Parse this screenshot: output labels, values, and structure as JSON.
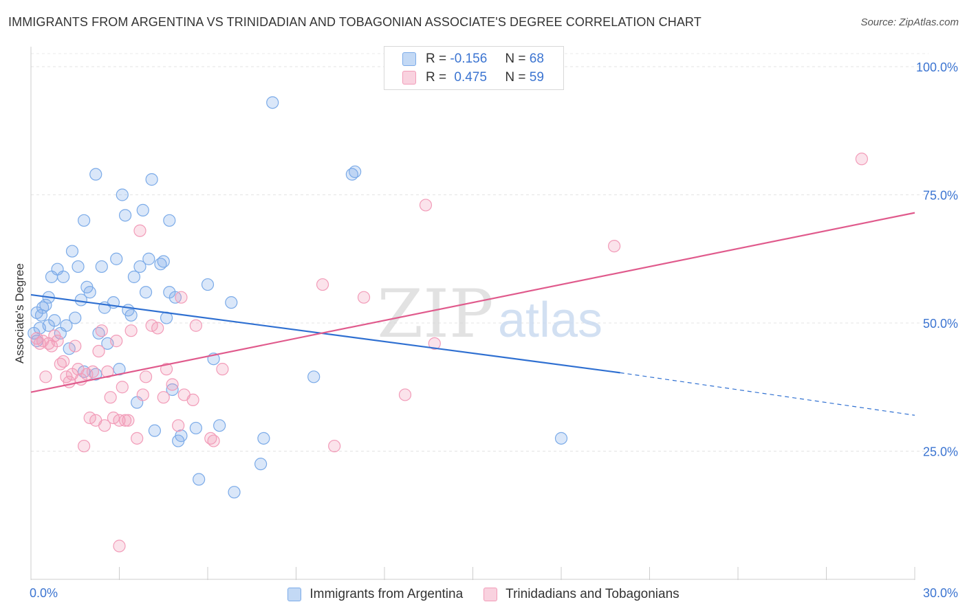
{
  "title": "IMMIGRANTS FROM ARGENTINA VS TRINIDADIAN AND TOBAGONIAN ASSOCIATE'S DEGREE CORRELATION CHART",
  "source": "Source: ZipAtlas.com",
  "watermark": {
    "zip": "ZIP",
    "atlas": "atlas"
  },
  "legend_top": [
    {
      "r_label": "R =",
      "r_value": "-0.156",
      "n_label": "N =",
      "n_value": "68"
    },
    {
      "r_label": "R =",
      "r_value": "0.475",
      "n_label": "N =",
      "n_value": "59"
    }
  ],
  "chart_data": {
    "type": "scatter",
    "ylabel": "Associate's Degree",
    "xlabel": "",
    "xlim": [
      0,
      30
    ],
    "ylim": [
      0,
      102
    ],
    "x_tick_labels": [
      {
        "value": 0,
        "label": "0.0%"
      },
      {
        "value": 30,
        "label": "30.0%"
      }
    ],
    "y_tick_labels": [
      {
        "value": 25,
        "label": "25.0%"
      },
      {
        "value": 50,
        "label": "50.0%"
      },
      {
        "value": 75,
        "label": "75.0%"
      },
      {
        "value": 100,
        "label": "100.0%"
      }
    ],
    "grid": true,
    "legend_position": "bottom",
    "series": [
      {
        "name": "Immigrants from Argentina",
        "color": "#7aaae8",
        "line_color": "#2e6fd1",
        "trend": {
          "x0": 0,
          "y0": 55.5,
          "x1": 20,
          "y1": 40.3,
          "dash_x1": 30,
          "dash_y1": 32.0
        },
        "points": [
          [
            0.1,
            48
          ],
          [
            0.2,
            52
          ],
          [
            0.3,
            49
          ],
          [
            0.35,
            51.5
          ],
          [
            0.4,
            53
          ],
          [
            0.5,
            53.5
          ],
          [
            0.6,
            49.5
          ],
          [
            0.7,
            59
          ],
          [
            0.8,
            50.5
          ],
          [
            0.9,
            60.5
          ],
          [
            1.0,
            48
          ],
          [
            1.1,
            59
          ],
          [
            1.2,
            49.5
          ],
          [
            1.3,
            45
          ],
          [
            1.4,
            64
          ],
          [
            1.5,
            51
          ],
          [
            1.6,
            61
          ],
          [
            1.7,
            54.5
          ],
          [
            1.8,
            70
          ],
          [
            1.9,
            57
          ],
          [
            2.0,
            56
          ],
          [
            2.2,
            79
          ],
          [
            2.3,
            48
          ],
          [
            2.4,
            61
          ],
          [
            2.5,
            53
          ],
          [
            2.6,
            46
          ],
          [
            2.8,
            54
          ],
          [
            2.9,
            62.5
          ],
          [
            3.0,
            41
          ],
          [
            3.1,
            75
          ],
          [
            3.2,
            71
          ],
          [
            3.4,
            51.5
          ],
          [
            3.5,
            59
          ],
          [
            3.6,
            34.5
          ],
          [
            3.7,
            61
          ],
          [
            3.8,
            72
          ],
          [
            3.9,
            56
          ],
          [
            4.0,
            62.5
          ],
          [
            4.1,
            78
          ],
          [
            4.2,
            29
          ],
          [
            4.4,
            61.5
          ],
          [
            4.5,
            62
          ],
          [
            4.6,
            51
          ],
          [
            4.7,
            70
          ],
          [
            4.8,
            37
          ],
          [
            4.9,
            55
          ],
          [
            5.0,
            27
          ],
          [
            5.1,
            28
          ],
          [
            5.6,
            29.5
          ],
          [
            5.7,
            19.5
          ],
          [
            6.0,
            57.5
          ],
          [
            6.2,
            43
          ],
          [
            6.4,
            30
          ],
          [
            6.8,
            54
          ],
          [
            6.9,
            17
          ],
          [
            7.8,
            22.5
          ],
          [
            7.9,
            27.5
          ],
          [
            8.2,
            93
          ],
          [
            9.6,
            39.5
          ],
          [
            10.9,
            79
          ],
          [
            11.0,
            79.5
          ],
          [
            18.0,
            27.5
          ],
          [
            0.6,
            55
          ],
          [
            1.8,
            40.5
          ],
          [
            2.2,
            40
          ],
          [
            3.3,
            52.5
          ],
          [
            4.7,
            56
          ],
          [
            0.2,
            46.5
          ]
        ]
      },
      {
        "name": "Trinidadians and Tobagonians",
        "color": "#f29bb8",
        "line_color": "#e05a8c",
        "trend": {
          "x0": 0,
          "y0": 36.5,
          "x1": 30,
          "y1": 71.5
        },
        "points": [
          [
            0.2,
            47
          ],
          [
            0.3,
            46
          ],
          [
            0.4,
            46.5
          ],
          [
            0.5,
            39.5
          ],
          [
            0.6,
            46
          ],
          [
            0.7,
            45.5
          ],
          [
            0.8,
            47.5
          ],
          [
            0.9,
            46.5
          ],
          [
            1.0,
            42
          ],
          [
            1.1,
            42.5
          ],
          [
            1.2,
            39.5
          ],
          [
            1.3,
            38.5
          ],
          [
            1.4,
            40
          ],
          [
            1.5,
            45.5
          ],
          [
            1.6,
            41
          ],
          [
            1.7,
            39
          ],
          [
            1.8,
            26
          ],
          [
            1.9,
            40
          ],
          [
            2.0,
            31.5
          ],
          [
            2.1,
            40.5
          ],
          [
            2.2,
            31
          ],
          [
            2.3,
            44.5
          ],
          [
            2.4,
            48.5
          ],
          [
            2.5,
            30
          ],
          [
            2.6,
            40.5
          ],
          [
            2.7,
            35.5
          ],
          [
            2.8,
            31.5
          ],
          [
            2.9,
            46.5
          ],
          [
            3.0,
            31
          ],
          [
            3.1,
            37.5
          ],
          [
            3.2,
            31
          ],
          [
            3.3,
            31
          ],
          [
            3.4,
            48.5
          ],
          [
            3.6,
            27.5
          ],
          [
            3.7,
            68
          ],
          [
            3.8,
            36
          ],
          [
            3.9,
            39.5
          ],
          [
            4.1,
            49.5
          ],
          [
            4.3,
            49
          ],
          [
            4.5,
            35.5
          ],
          [
            4.6,
            41
          ],
          [
            4.8,
            38
          ],
          [
            5.0,
            30
          ],
          [
            5.1,
            55
          ],
          [
            5.2,
            36
          ],
          [
            5.5,
            35
          ],
          [
            5.6,
            49.5
          ],
          [
            6.1,
            27.5
          ],
          [
            6.2,
            27
          ],
          [
            6.5,
            41
          ],
          [
            9.9,
            57.5
          ],
          [
            10.3,
            26
          ],
          [
            11.3,
            55
          ],
          [
            12.7,
            36
          ],
          [
            13.4,
            73
          ],
          [
            13.7,
            46
          ],
          [
            19.8,
            65
          ],
          [
            28.2,
            82
          ],
          [
            3.0,
            6.5
          ]
        ]
      }
    ]
  },
  "legend_bottom": [
    {
      "label": "Immigrants from Argentina"
    },
    {
      "label": "Trinidadians and Tobagonians"
    }
  ]
}
